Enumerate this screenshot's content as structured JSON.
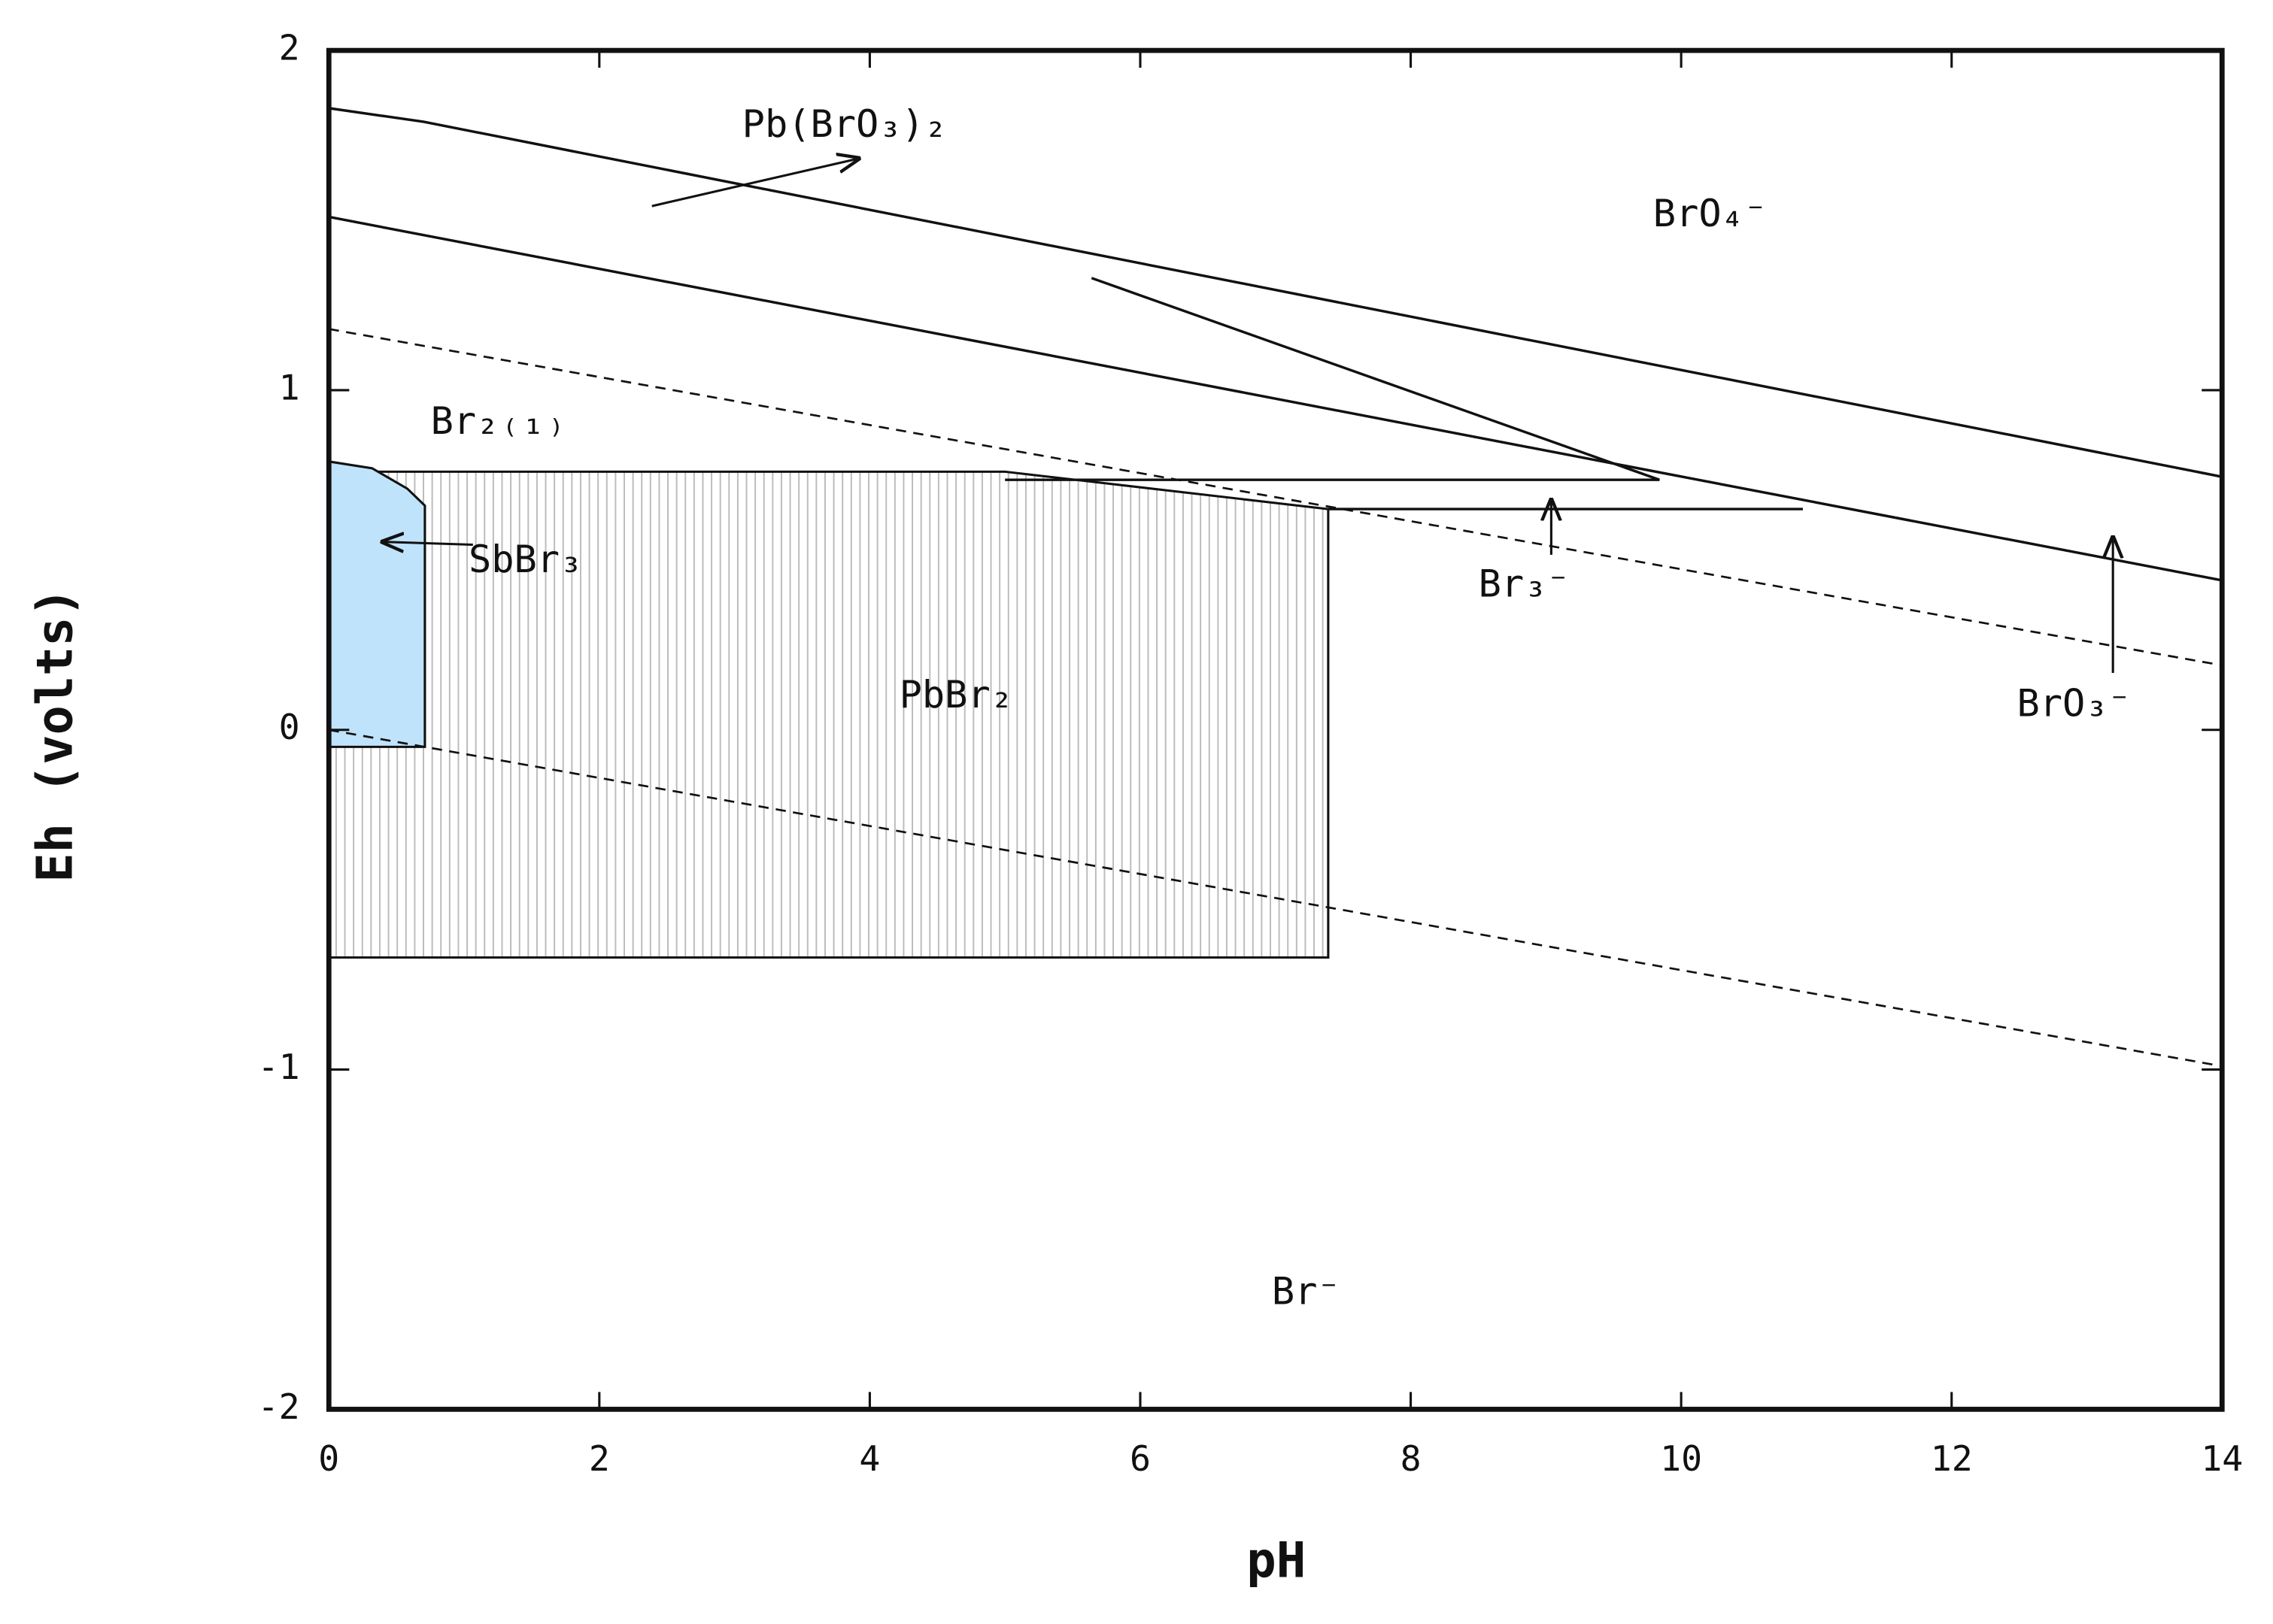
{
  "chart_data": {
    "type": "line",
    "x_label": "pH",
    "y_label": "Eh (volts)",
    "xlim": [
      0,
      14
    ],
    "ylim": [
      -2,
      2
    ],
    "xticks": [
      0,
      2,
      4,
      6,
      8,
      10,
      12,
      14
    ],
    "yticks": [
      -2,
      -1,
      0,
      1,
      2
    ],
    "series": [
      {
        "x": [
          0,
          0.7,
          14
        ],
        "values": [
          1.83,
          1.79,
          0.745
        ],
        "color": "#111111",
        "dashed": false
      },
      {
        "x": [
          0,
          14
        ],
        "values": [
          1.51,
          0.44
        ],
        "color": "#111111",
        "dashed": false
      },
      {
        "x": [
          5.64,
          9.84
        ],
        "values": [
          1.33,
          0.736
        ],
        "color": "#111111",
        "dashed": false
      },
      {
        "x": [
          5.0,
          9.84
        ],
        "values": [
          0.736,
          0.736
        ],
        "color": "#111111",
        "dashed": false
      },
      {
        "x": [
          7.39,
          10.9
        ],
        "values": [
          0.65,
          0.65
        ],
        "color": "#111111",
        "dashed": false
      },
      {
        "x": [
          0,
          14
        ],
        "values": [
          1.18,
          0.19
        ],
        "color": "#111111",
        "dashed": true
      },
      {
        "x": [
          0,
          14
        ],
        "values": [
          0,
          -0.99
        ],
        "color": "#111111",
        "dashed": true
      }
    ],
    "regions": [
      {
        "x": [
          0,
          5.0,
          7.39,
          7.39,
          0
        ],
        "values": [
          0.76,
          0.76,
          0.65,
          -0.67,
          -0.67
        ],
        "fill": "hatch"
      },
      {
        "x": [
          0,
          0.32,
          0.58,
          0.71,
          0.71,
          0
        ],
        "values": [
          0.79,
          0.77,
          0.71,
          0.66,
          -0.05,
          -0.05
        ],
        "fill": "#bfe3fb"
      }
    ],
    "annotations": [
      "Pb(BrO₃)₂",
      "BrO₄⁻",
      "Br₂₍₁₎",
      "SbBr₃",
      "PbBr₂",
      "Br₃⁻",
      "BrO₃⁻",
      "Br⁻"
    ]
  }
}
